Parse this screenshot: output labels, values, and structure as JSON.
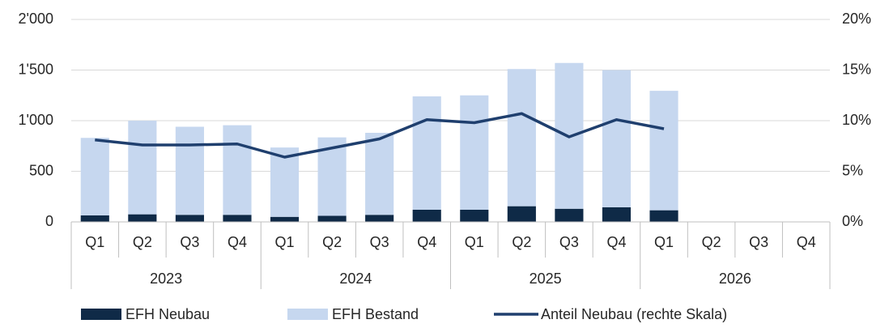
{
  "chart_data": {
    "type": "bar",
    "stacked": true,
    "categories": [
      "Q1",
      "Q2",
      "Q3",
      "Q4",
      "Q1",
      "Q2",
      "Q3",
      "Q4",
      "Q1",
      "Q2",
      "Q3",
      "Q4",
      "Q1",
      "Q2",
      "Q3",
      "Q4"
    ],
    "groups": [
      "2023",
      "2024",
      "2025",
      "2026"
    ],
    "series": [
      {
        "name": "EFH Neubau",
        "color": "#0f2a47",
        "values": [
          65,
          75,
          70,
          70,
          50,
          60,
          70,
          120,
          120,
          155,
          130,
          145,
          115,
          null,
          null,
          null
        ]
      },
      {
        "name": "EFH Bestand",
        "color": "#c6d7ef",
        "values": [
          765,
          925,
          870,
          885,
          685,
          775,
          810,
          1120,
          1130,
          1355,
          1440,
          1355,
          1180,
          null,
          null,
          null
        ]
      },
      {
        "name": "Anteil Neubau (rechte Skala)",
        "type": "line",
        "axis": "y2",
        "color": "#1f3f6e",
        "values": [
          8.1,
          7.6,
          7.6,
          7.7,
          6.4,
          7.3,
          8.2,
          10.1,
          9.8,
          10.7,
          8.4,
          10.1,
          9.2,
          null,
          null,
          null
        ]
      }
    ],
    "ylim": [
      0,
      2000
    ],
    "yticks": [
      0,
      500,
      {
        "value": 1000,
        "label": "1'000"
      },
      {
        "value": 1500,
        "label": "1'500"
      },
      {
        "value": 2000,
        "label": "2'000"
      }
    ],
    "y2lim": [
      0,
      20
    ],
    "y2ticks": [
      {
        "value": 0,
        "label": "0%"
      },
      {
        "value": 5,
        "label": "5%"
      },
      {
        "value": 10,
        "label": "10%"
      },
      {
        "value": 15,
        "label": "15%"
      },
      {
        "value": 20,
        "label": "20%"
      }
    ],
    "grid": true,
    "legend": "bottom"
  }
}
